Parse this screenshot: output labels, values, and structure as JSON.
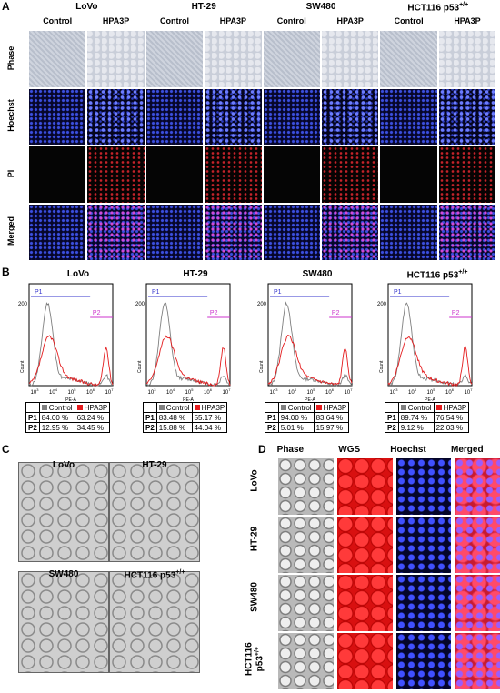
{
  "panels": {
    "A": {
      "letter": "A",
      "cell_lines": [
        {
          "name": "LoVo"
        },
        {
          "name": "HT-29"
        },
        {
          "name": "SW480"
        },
        {
          "name": "HCT116 p53",
          "sup": "+/+"
        }
      ],
      "conditions": [
        "Control",
        "HPA3P"
      ],
      "rows": [
        "Phase",
        "Hoechst",
        "PI",
        "Merged"
      ]
    },
    "B": {
      "letter": "B",
      "legend_control": "Control",
      "legend_treated": "HPA3P",
      "gate1": "P1",
      "gate2": "P2",
      "xaxis_label": "PE-A",
      "yaxis_label": "Count",
      "xticks": [
        "10",
        "10",
        "10",
        "10",
        "10"
      ],
      "xtick_exps": [
        "3",
        "4",
        "5",
        "6",
        "7"
      ],
      "plots": [
        {
          "title": "LoVo",
          "ymax": "200",
          "p1_control": "84.00 %",
          "p1_treated": "63.24 %",
          "p2_control": "12.95 %",
          "p2_treated": "34.45 %"
        },
        {
          "title": "HT-29",
          "ymax": "200",
          "p1_control": "83.48 %",
          "p1_treated": "55.17 %",
          "p2_control": "15.88 %",
          "p2_treated": "44.04 %"
        },
        {
          "title": "SW480",
          "ymax": "200",
          "p1_control": "94.00 %",
          "p1_treated": "83.64 %",
          "p2_control": "5.01 %",
          "p2_treated": "15.97 %"
        },
        {
          "title": "HCT116 p53",
          "title_sup": "+/+",
          "ymax": "200",
          "p1_control": "89.74 %",
          "p1_treated": "76.54 %",
          "p2_control": "9.12 %",
          "p2_treated": "22.03 %"
        }
      ]
    },
    "C": {
      "letter": "C",
      "images": [
        {
          "label": "LoVo"
        },
        {
          "label": "HT-29"
        },
        {
          "label": "SW480"
        },
        {
          "label": "HCT116 p53",
          "sup": "+/+"
        }
      ]
    },
    "D": {
      "letter": "D",
      "columns": [
        "Phase",
        "WGS",
        "Hoechst",
        "Merged"
      ],
      "rows": [
        {
          "label": "LoVo"
        },
        {
          "label": "HT-29"
        },
        {
          "label": "SW480"
        },
        {
          "label": "HCT116",
          "label2": "p53",
          "sup": "+/+"
        }
      ]
    }
  },
  "colors": {
    "control_series": "#7f7f7f",
    "treated_series": "#e41a1c",
    "gate_p1": "#3333cc",
    "gate_p2": "#cc33cc"
  }
}
